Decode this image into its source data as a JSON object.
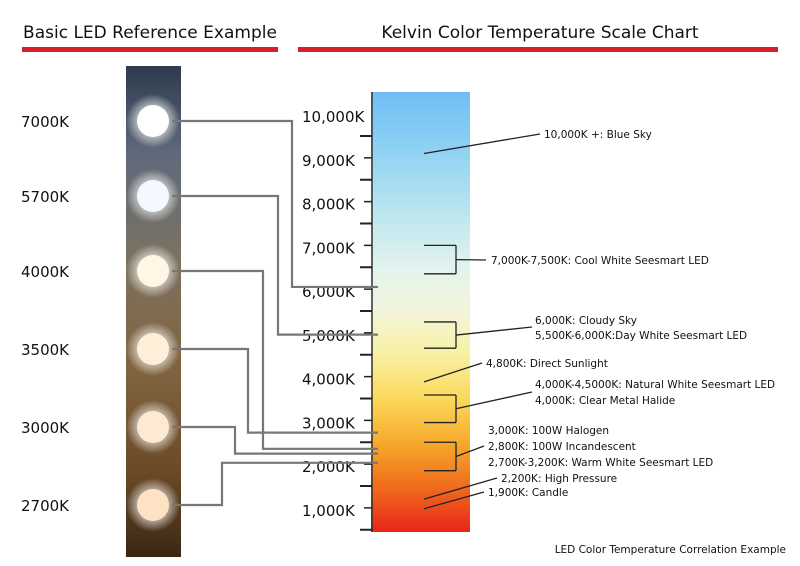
{
  "left_panel": {
    "title": "Basic LED Reference Example",
    "leds": [
      "7000K",
      "5700K",
      "4000K",
      "3500K",
      "3000K",
      "2700K"
    ],
    "colors": [
      "#ffffff",
      "#f4f8ff",
      "#fff6e6",
      "#ffeed8",
      "#ffe9d2",
      "#ffe2c4"
    ]
  },
  "right_panel": {
    "title": "Kelvin Color Temperature Scale Chart",
    "scale_labels": [
      "10,000K",
      "9,000K",
      "8,000K",
      "7,000K",
      "6,000K",
      "5,000K",
      "4,000K",
      "3,000K",
      "2,000K",
      "1,000K"
    ],
    "scale_values": [
      10000,
      9000,
      8000,
      7000,
      6000,
      5000,
      4000,
      3000,
      2000,
      1000
    ],
    "annotations": [
      {
        "label": "10,000K +: Blue Sky",
        "values": [
          9600
        ]
      },
      {
        "label": "7,000K-7,500K: Cool White Seesmart LED",
        "values": [
          7500,
          6850
        ]
      },
      {
        "label": "6,000K: Cloudy Sky",
        "values": [
          5750
        ]
      },
      {
        "label": "5,500K-6,000K:Day White Seesmart LED",
        "values": [
          5750,
          5150
        ]
      },
      {
        "label": "4,800K: Direct Sunlight",
        "values": [
          4380
        ]
      },
      {
        "label": "4,000K-4,5000K: Natural White Seesmart LED",
        "values": [
          4080,
          3450
        ]
      },
      {
        "label": "4,000K: Clear Metal Halide",
        "values": []
      },
      {
        "label": "3,000K: 100W Halogen",
        "values": [
          3000,
          2350
        ]
      },
      {
        "label": "2,800K: 100W Incandescent",
        "values": []
      },
      {
        "label": "2,700K-3,200K: Warm White Seesmart LED",
        "values": []
      },
      {
        "label": "2,200K: High Pressure",
        "values": [
          1700
        ]
      },
      {
        "label": "1,900K: Candle",
        "values": [
          1480
        ]
      }
    ],
    "gradient_colors": [
      "#6fbef3",
      "#86cdf3",
      "#a5dbf0",
      "#c3e9ef",
      "#e2f3ee",
      "#f3f5da",
      "#f8f0a0",
      "#fbd85a",
      "#f7a82a",
      "#f06a1c",
      "#e8251a"
    ]
  },
  "connectors": [
    {
      "led": "7000K",
      "value": 6550
    },
    {
      "led": "5700K",
      "value": 5460
    },
    {
      "led": "4000K",
      "value": 2850
    },
    {
      "led": "3500K",
      "value": 3220
    },
    {
      "led": "3000K",
      "value": 2740
    },
    {
      "led": "2700K",
      "value": 2530
    }
  ],
  "footer": "LED Color Temperature Correlation Example",
  "accent_color": "#d62027"
}
